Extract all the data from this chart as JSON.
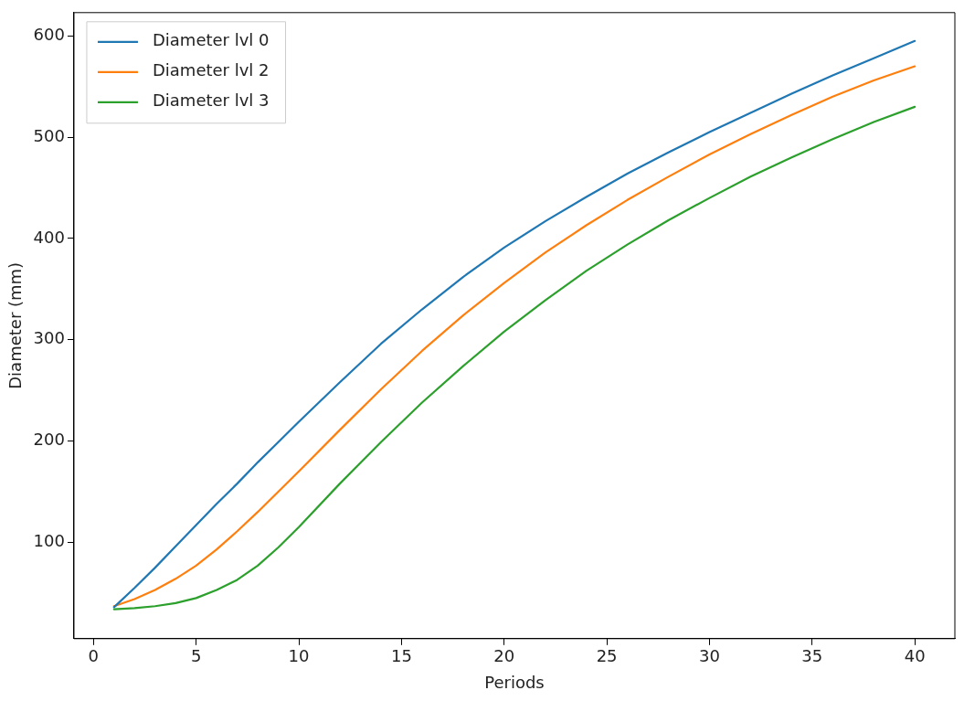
{
  "chart_data": {
    "type": "line",
    "xlabel": "Periods",
    "ylabel": "Diameter (mm)",
    "x": [
      1,
      2,
      3,
      4,
      5,
      6,
      7,
      8,
      9,
      10,
      12,
      14,
      16,
      18,
      20,
      22,
      24,
      26,
      28,
      30,
      32,
      34,
      36,
      38,
      40
    ],
    "series": [
      {
        "name": "Diameter lvl 0",
        "color": "#1f77b4",
        "values": [
          36,
          55,
          75,
          96,
          117,
          138,
          158,
          179,
          199,
          219,
          258,
          296,
          330,
          362,
          391,
          417,
          441,
          464,
          485,
          505,
          524,
          543,
          561,
          578,
          595
        ]
      },
      {
        "name": "Diameter lvl 2",
        "color": "#ff7f0e",
        "values": [
          37,
          44,
          53,
          64,
          77,
          93,
          111,
          130,
          150,
          170,
          211,
          251,
          289,
          324,
          356,
          386,
          413,
          438,
          461,
          483,
          503,
          522,
          540,
          556,
          570
        ]
      },
      {
        "name": "Diameter lvl 3",
        "color": "#2ca02c",
        "values": [
          34,
          35,
          37,
          40,
          45,
          53,
          63,
          77,
          95,
          115,
          158,
          199,
          238,
          274,
          308,
          339,
          368,
          394,
          418,
          440,
          461,
          480,
          498,
          515,
          530
        ]
      }
    ],
    "xlim": [
      -0.95,
      41.95
    ],
    "xticks": [
      0,
      5,
      10,
      15,
      20,
      25,
      30,
      35,
      40
    ],
    "ylim": [
      4.9,
      623
    ],
    "yticks": [
      100,
      200,
      300,
      400,
      500,
      600
    ],
    "grid": false,
    "legend": "top left",
    "marker": "none",
    "line_style": "solid"
  }
}
